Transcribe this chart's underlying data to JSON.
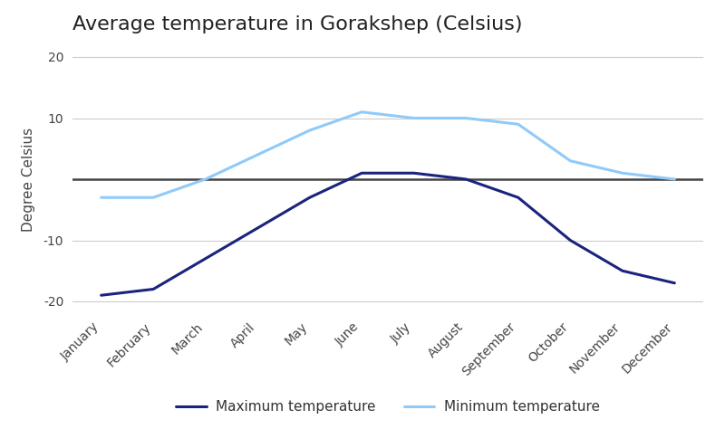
{
  "title": "Average temperature in Gorakshep (Celsius)",
  "ylabel": "Degree Celsius",
  "months": [
    "January",
    "February",
    "March",
    "April",
    "May",
    "June",
    "July",
    "August",
    "September",
    "October",
    "November",
    "December"
  ],
  "max_temp": [
    -19,
    -18,
    -13,
    -8,
    -3,
    1,
    1,
    0,
    -3,
    -10,
    -15,
    -17
  ],
  "min_temp": [
    -3,
    -3,
    0,
    4,
    8,
    11,
    10,
    10,
    9,
    3,
    1,
    0
  ],
  "max_color": "#1a237e",
  "min_color": "#90caf9",
  "max_label": "Maximum temperature",
  "min_label": "Minimum temperature",
  "ylim": [
    -22,
    22
  ],
  "yticks": [
    -20,
    -10,
    0,
    10,
    20
  ],
  "bg_color": "#ffffff",
  "grid_color": "#cccccc",
  "zero_line_color": "#444444",
  "title_fontsize": 16,
  "axis_label_fontsize": 11,
  "tick_fontsize": 10,
  "legend_fontsize": 11,
  "line_width": 2.2
}
